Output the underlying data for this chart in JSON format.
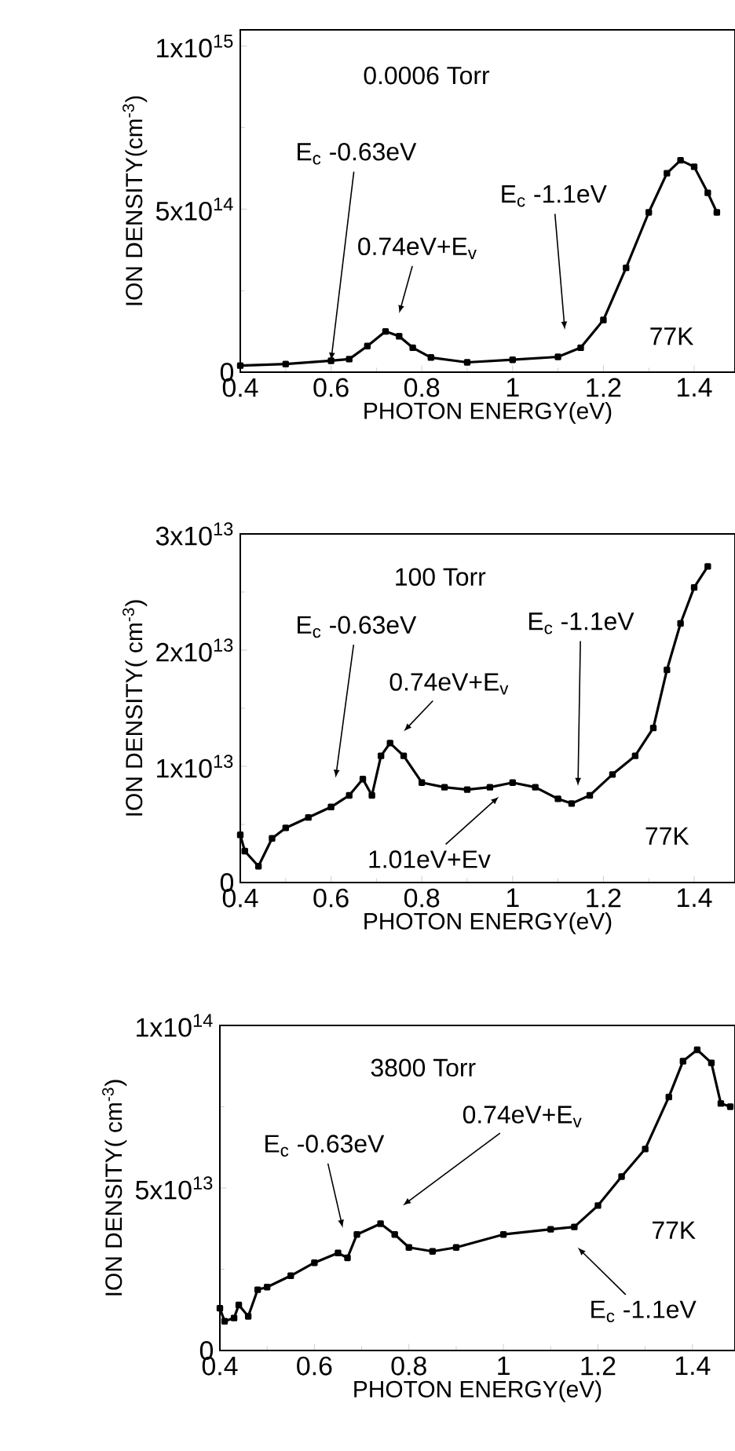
{
  "chart_data": [
    {
      "type": "line",
      "marker": "square",
      "xlabel": "PHOTON ENERGY(eV)",
      "ylabel": "ION DENSITY(cm$^{-3}$)",
      "xlim": [
        0.4,
        1.49
      ],
      "ylim": [
        0,
        1050000000000000.0
      ],
      "xticks": [
        0.4,
        0.6,
        0.8,
        1,
        1.2,
        1.4
      ],
      "yticks": [
        0,
        {
          "value": 500000000000000.0,
          "label": "5x10$^{14}$"
        },
        {
          "value": 1000000000000000.0,
          "label": "1x10$^{15}$"
        }
      ],
      "x": [
        0.4,
        0.5,
        0.6,
        0.64,
        0.68,
        0.72,
        0.75,
        0.78,
        0.82,
        0.9,
        1.0,
        1.1,
        1.15,
        1.2,
        1.25,
        1.3,
        1.34,
        1.37,
        1.4,
        1.43,
        1.45
      ],
      "values": [
        20000000000000.0,
        25000000000000.0,
        35000000000000.0,
        40000000000000.0,
        80000000000000.0,
        125000000000000.0,
        110000000000000.0,
        75000000000000.0,
        45000000000000.0,
        30000000000000.0,
        38000000000000.0,
        47000000000000.0,
        75000000000000.0,
        160000000000000.0,
        320000000000000.0,
        490000000000000.0,
        610000000000000.0,
        650000000000000.0,
        630000000000000.0,
        550000000000000.0,
        490000000000000.0
      ],
      "annotations": [
        "0.0006 Torr",
        {
          "text": "E$_{c}$ -0.63eV",
          "x": 0.6,
          "y": 35000000000000.0
        },
        "0.74eV+E$_{v}$",
        "E$_{c}$ -1.1eV",
        "77K"
      ]
    },
    {
      "type": "line",
      "marker": "square",
      "xlabel": "PHOTON ENERGY(eV)",
      "ylabel": "ION DENSITY( cm$^{-3}$)",
      "xlim": [
        0.4,
        1.49
      ],
      "ylim": [
        0,
        30000000000000.0
      ],
      "xticks": [
        0.4,
        0.6,
        0.8,
        1,
        1.2,
        1.4
      ],
      "yticks": [
        0,
        {
          "value": 10000000000000.0,
          "label": "1x10$^{13}$"
        },
        {
          "value": 20000000000000.0,
          "label": "2x10$^{13}$"
        },
        {
          "value": 30000000000000.0,
          "label": "3x10$^{13}$"
        }
      ],
      "x": [
        0.4,
        0.41,
        0.44,
        0.47,
        0.5,
        0.55,
        0.6,
        0.64,
        0.67,
        0.69,
        0.71,
        0.73,
        0.76,
        0.8,
        0.85,
        0.9,
        0.95,
        1.0,
        1.05,
        1.1,
        1.13,
        1.17,
        1.22,
        1.27,
        1.31,
        1.34,
        1.37,
        1.4,
        1.43
      ],
      "values": [
        4100000000000.0,
        2700000000000.0,
        1400000000000.0,
        3800000000000.0,
        4700000000000.0,
        5600000000000.0,
        6500000000000.0,
        7500000000000.0,
        8900000000000.0,
        7500000000000.0,
        10900000000000.0,
        12000000000000.0,
        10900000000000.0,
        8600000000000.0,
        8200000000000.0,
        8000000000000.0,
        8200000000000.0,
        8600000000000.0,
        8200000000000.0,
        7200000000000.0,
        6800000000000.0,
        7500000000000.0,
        9300000000000.0,
        10900000000000.0,
        13300000000000.0,
        18300000000000.0,
        22300000000000.0,
        25400000000000.0,
        27200000000000.0
      ],
      "annotations": [
        "100 Torr",
        "E$_{c}$ -0.63eV",
        "0.74eV+E$_{v}$",
        "E$_{c}$ -1.1eV",
        "1.01eV+Ev",
        "77K"
      ]
    },
    {
      "type": "line",
      "marker": "square",
      "xlabel": "PHOTON ENERGY(eV)",
      "ylabel": "ION DENSITY( cm$^{-3}$)",
      "xlim": [
        0.4,
        1.49
      ],
      "ylim": [
        0,
        100000000000000.0
      ],
      "xticks": [
        0.4,
        0.6,
        0.8,
        1,
        1.2,
        1.4
      ],
      "yticks": [
        0,
        {
          "value": 50000000000000.0,
          "label": "5x10$^{13}$"
        },
        {
          "value": 100000000000000.0,
          "label": "1x10$^{14}$"
        }
      ],
      "x": [
        0.4,
        0.41,
        0.43,
        0.44,
        0.46,
        0.48,
        0.5,
        0.55,
        0.6,
        0.65,
        0.67,
        0.69,
        0.74,
        0.77,
        0.8,
        0.85,
        0.9,
        1.0,
        1.1,
        1.15,
        1.2,
        1.25,
        1.3,
        1.35,
        1.38,
        1.41,
        1.44,
        1.46,
        1.48
      ],
      "values": [
        13000000000000.0,
        9000000000000.0,
        10000000000000.0,
        14000000000000.0,
        10500000000000.0,
        18700000000000.0,
        19500000000000.0,
        23000000000000.0,
        27000000000000.0,
        30000000000000.0,
        28500000000000.0,
        35700000000000.0,
        39000000000000.0,
        35700000000000.0,
        31700000000000.0,
        30500000000000.0,
        31700000000000.0,
        35700000000000.0,
        37300000000000.0,
        38000000000000.0,
        44600000000000.0,
        53500000000000.0,
        62000000000000.0,
        78000000000000.0,
        89000000000000.0,
        92500000000000.0,
        88500000000000.0,
        76000000000000.0,
        75000000000000.0
      ],
      "annotations": [
        "3800 Torr",
        "E$_{c}$ -0.63eV",
        "0.74eV+E$_{v}$",
        "77K",
        "E$_{c}$ -1.1eV"
      ]
    }
  ]
}
